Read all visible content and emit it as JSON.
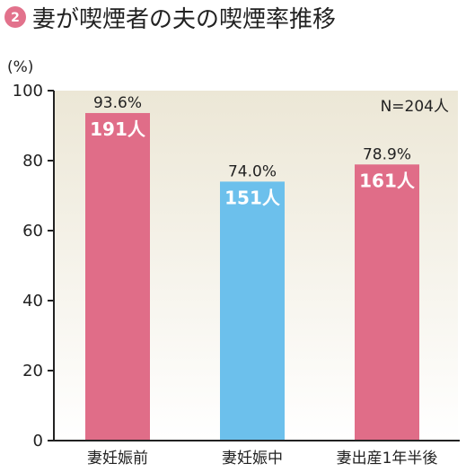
{
  "title": {
    "badge_number": "2",
    "text": "妻が喫煙者の夫の喫煙率推移"
  },
  "colors": {
    "accent": "#e2728c",
    "bar_pink": "#e06d88",
    "bar_blue": "#6cc0ec",
    "background_top": "#ece7d6",
    "background_bottom": "#ffffff"
  },
  "chart_data": {
    "type": "bar",
    "unit_label": "(%)",
    "sample_label": "N=204人",
    "categories": [
      "妻妊娠前",
      "妻妊娠中",
      "妻出産1年半後"
    ],
    "values": [
      93.6,
      74.0,
      78.9
    ],
    "value_labels": [
      "93.6%",
      "74.0%",
      "78.9%"
    ],
    "count_labels": [
      "191人",
      "151人",
      "161人"
    ],
    "bar_colors": [
      "#e06d88",
      "#6cc0ec",
      "#e06d88"
    ],
    "ylim": [
      0,
      100
    ],
    "yticks": [
      0,
      20,
      40,
      60,
      80,
      100
    ],
    "ytick_labels": [
      "0",
      "20",
      "40",
      "60",
      "80",
      "100"
    ],
    "grid": false
  }
}
